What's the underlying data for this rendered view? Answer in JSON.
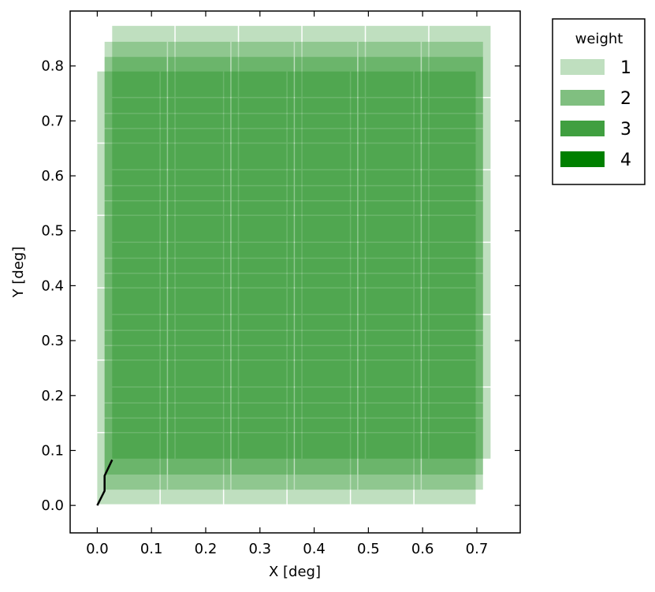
{
  "chart_data": {
    "type": "heatmap",
    "title": "",
    "xlabel": "X [deg]",
    "ylabel": "Y [deg]",
    "xlim": [
      -0.05,
      0.78
    ],
    "ylim": [
      -0.05,
      0.9
    ],
    "xticks": [
      "0.0",
      "0.1",
      "0.2",
      "0.3",
      "0.4",
      "0.5",
      "0.6",
      "0.7"
    ],
    "xtick_values": [
      0.0,
      0.1,
      0.2,
      0.3,
      0.4,
      0.5,
      0.6,
      0.7
    ],
    "yticks": [
      "0.0",
      "0.1",
      "0.2",
      "0.3",
      "0.4",
      "0.5",
      "0.6",
      "0.7",
      "0.8"
    ],
    "ytick_values": [
      0.0,
      0.1,
      0.2,
      0.3,
      0.4,
      0.5,
      0.6,
      0.7,
      0.8
    ],
    "grid": false,
    "legend": {
      "title": "weight",
      "placement": "outside-top-right",
      "entries": [
        {
          "label": "1",
          "color": "#bfdfbf"
        },
        {
          "label": "2",
          "color": "#80bf80"
        },
        {
          "label": "3",
          "color": "#409f40"
        },
        {
          "label": "4",
          "color": "#008000"
        }
      ]
    },
    "dither_offsets": [
      {
        "dx": 0.0,
        "dy": 0.0
      },
      {
        "dx": 0.0135,
        "dy": 0.0265
      },
      {
        "dx": 0.0135,
        "dy": 0.054
      },
      {
        "dx": 0.0275,
        "dy": 0.083
      }
    ],
    "tiles": {
      "columns": [
        [
          0.0,
          0.117
        ],
        [
          0.117,
          0.234
        ],
        [
          0.234,
          0.351
        ],
        [
          0.351,
          0.468
        ],
        [
          0.468,
          0.585
        ],
        [
          0.585,
          0.7
        ]
      ],
      "rows": [
        [
          0.0,
          0.1315
        ],
        [
          0.1315,
          0.2635
        ],
        [
          0.2635,
          0.395
        ],
        [
          0.395,
          0.527
        ],
        [
          0.527,
          0.6585
        ],
        [
          0.6585,
          0.79
        ]
      ]
    },
    "path": {
      "color": "#000000",
      "points": [
        [
          0.0,
          0.0
        ],
        [
          0.0135,
          0.0265
        ],
        [
          0.0135,
          0.054
        ],
        [
          0.0275,
          0.083
        ]
      ]
    }
  }
}
